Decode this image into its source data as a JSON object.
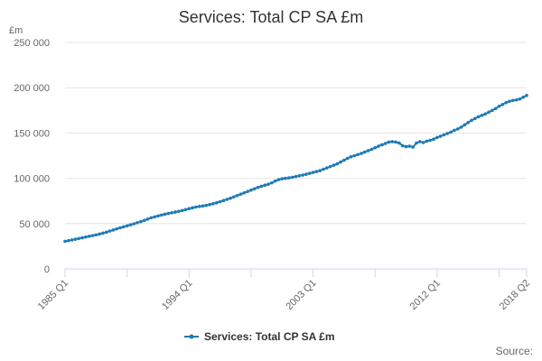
{
  "chart_data": {
    "type": "line",
    "title": "Services: Total CP SA £m",
    "y_unit_label": "£m",
    "ylim": [
      0,
      250000
    ],
    "y_ticks": [
      0,
      50000,
      100000,
      150000,
      200000,
      250000
    ],
    "y_tick_labels": [
      "0",
      "50 000",
      "100 000",
      "150 000",
      "200 000",
      "250 000"
    ],
    "x_tick_labels": [
      "1985 Q1",
      "1994 Q1",
      "2003 Q1",
      "2012 Q1",
      "2018 Q2"
    ],
    "grid": true,
    "legend_position": "bottom-center",
    "color": "#1f7bb6",
    "series": [
      {
        "name": "Services: Total CP SA £m",
        "start": "1985 Q1",
        "frequency": "quarterly",
        "values": [
          30500,
          31200,
          32000,
          32800,
          33600,
          34400,
          35200,
          36000,
          36800,
          37600,
          38500,
          39500,
          40500,
          41800,
          43000,
          44200,
          45400,
          46500,
          47600,
          48700,
          49800,
          51000,
          52200,
          53600,
          55000,
          56500,
          57500,
          58500,
          59500,
          60400,
          61200,
          62000,
          62800,
          63600,
          64500,
          65500,
          66500,
          67500,
          68300,
          69000,
          69500,
          70200,
          71000,
          72000,
          73000,
          74200,
          75500,
          76800,
          78000,
          79500,
          81000,
          82500,
          84000,
          85500,
          87000,
          88500,
          90000,
          91200,
          92400,
          93500,
          95000,
          97000,
          98500,
          99500,
          100000,
          100500,
          101200,
          102000,
          102800,
          103600,
          104500,
          105500,
          106500,
          107500,
          108500,
          110000,
          111500,
          113000,
          114500,
          116000,
          118000,
          120000,
          122000,
          123800,
          125000,
          126200,
          127500,
          129000,
          130500,
          132000,
          133800,
          135500,
          137000,
          138500,
          140000,
          140500,
          140000,
          139000,
          136000,
          135000,
          135500,
          134500,
          139000,
          140500,
          139500,
          141000,
          142000,
          143200,
          145000,
          146500,
          148000,
          149500,
          151000,
          153000,
          154500,
          156500,
          159000,
          161500,
          164000,
          166000,
          168000,
          169500,
          171000,
          173000,
          175000,
          177000,
          179500,
          181500,
          183500,
          185000,
          186000,
          186500,
          187500,
          189500,
          191500
        ]
      }
    ]
  },
  "legend": {
    "label": "Services: Total CP SA £m"
  },
  "source": {
    "label": "Source:"
  }
}
